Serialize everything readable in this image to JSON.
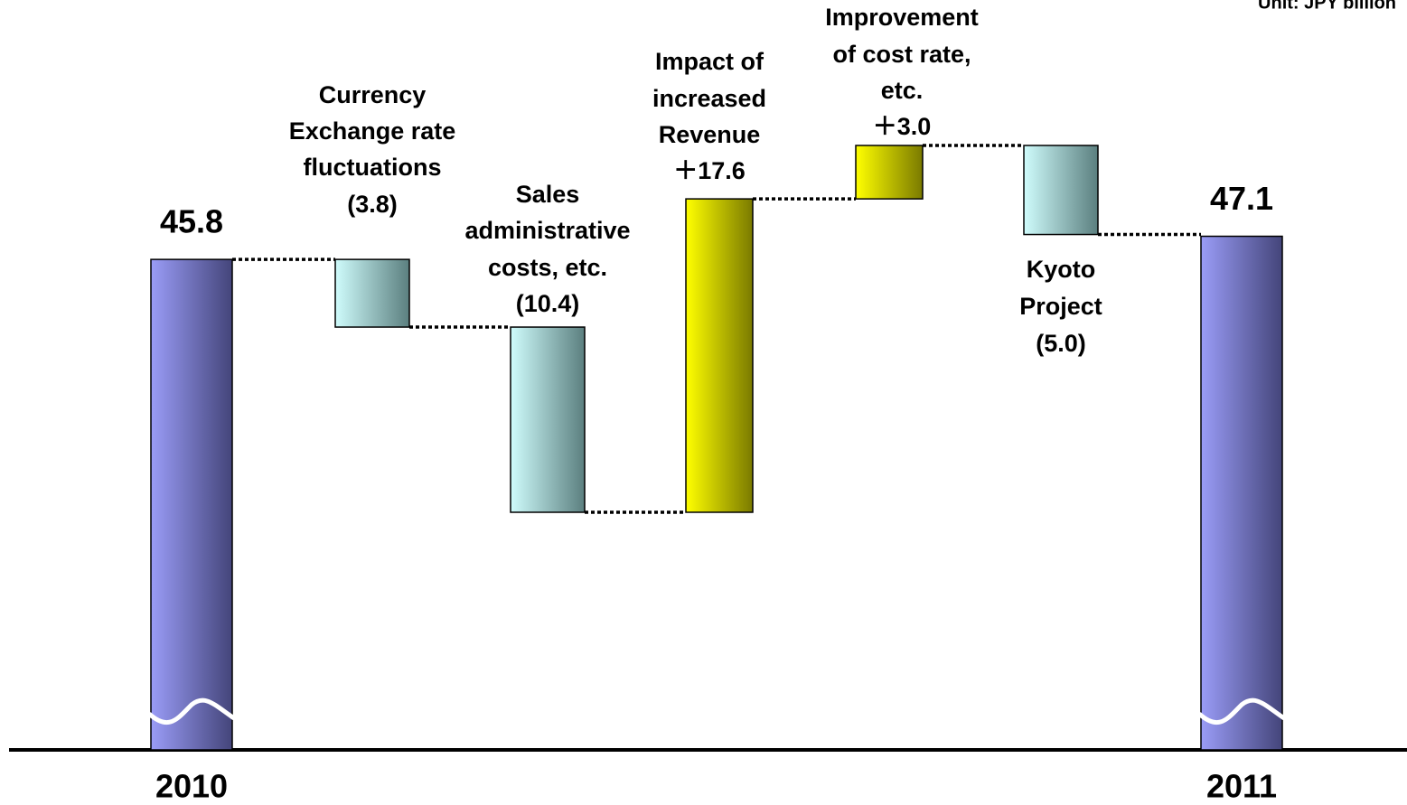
{
  "chart_data": {
    "type": "waterfall",
    "unit_note": "Unit: JPY billion",
    "categories": [
      "2010",
      "Currency\nExchange rate\nfluctuations",
      "Sales\nadministrative\ncosts, etc.",
      "Impact of\nincreased\nRevenue",
      "Improvement\nof cost rate,\netc.",
      "Kyoto\nProject",
      "2011"
    ],
    "values": [
      45.8,
      -3.8,
      -10.4,
      17.6,
      3.0,
      -5.0,
      47.1
    ],
    "value_labels": [
      "45.8",
      "(3.8)",
      "(10.4)",
      "＋17.6",
      "＋3.0",
      "(5.0)",
      "47.1"
    ],
    "colors": {
      "total": [
        "#9a9cf7",
        "#44457a"
      ],
      "decrease": [
        "#cffcfc",
        "#5b7f7f"
      ],
      "increase": [
        "#ffff00",
        "#7a7a00"
      ]
    }
  }
}
